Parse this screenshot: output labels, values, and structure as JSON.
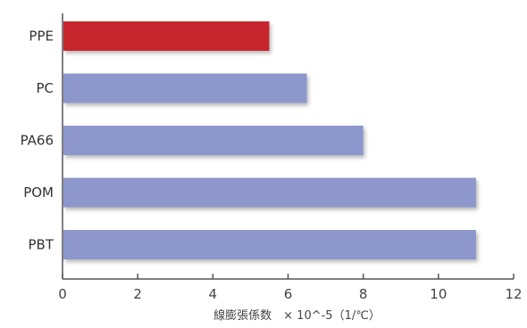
{
  "chart_data": {
    "type": "bar",
    "orientation": "horizontal",
    "categories": [
      "PPE",
      "PC",
      "PA66",
      "POM",
      "PBT"
    ],
    "values": [
      5.5,
      6.5,
      8,
      11,
      11
    ],
    "highlight": "PPE",
    "xlabel": "線膨張係数　× 10^-5（1/℃）",
    "ylabel": "",
    "xlim": [
      0,
      12
    ],
    "xticks": [
      0,
      2,
      4,
      6,
      8,
      10,
      12
    ],
    "grid": false,
    "colors": {
      "highlight_bar": "#c8282d",
      "highlight_label": "#c8282d",
      "bar": "#8d97cc",
      "label": "#333333",
      "axis": "#555555"
    }
  }
}
